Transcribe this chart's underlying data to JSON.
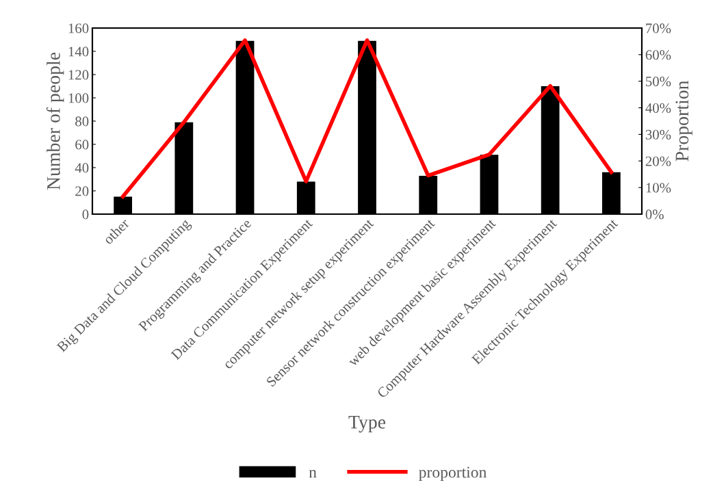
{
  "chart_data": {
    "type": "bar",
    "xlabel": "Type",
    "ylabel": "Number of people",
    "y2label": "Proportion",
    "categories": [
      "other",
      "Big Data and Cloud Computing",
      "Programming and Practice",
      "Data Communication Experiment",
      "computer network setup experiment",
      "Sensor network construction experiment",
      "web development basic experiment",
      "Computer Hardware Assembly Experiment",
      "Electronic Technology Experiment"
    ],
    "series": [
      {
        "name": "n",
        "color": "#000000",
        "values": [
          15,
          79,
          149,
          28,
          149,
          33,
          51,
          110,
          36
        ]
      },
      {
        "name": "proportion",
        "type": "line",
        "axis": "y2",
        "color": "#ff0000",
        "values": [
          6.6,
          34.6,
          65.4,
          12.3,
          65.4,
          14.5,
          22.4,
          48.2,
          15.8
        ]
      }
    ],
    "ylim": [
      0,
      160
    ],
    "yticks": [
      0,
      20,
      40,
      60,
      80,
      100,
      120,
      140,
      160
    ],
    "y2lim": [
      0,
      70
    ],
    "y2ticks": [
      {
        "value": 0,
        "label": "0%"
      },
      {
        "value": 10,
        "label": "10%"
      },
      {
        "value": 20,
        "label": "20%"
      },
      {
        "value": 30,
        "label": "30%"
      },
      {
        "value": 40,
        "label": "40%"
      },
      {
        "value": 50,
        "label": "50%"
      },
      {
        "value": 60,
        "label": "60%"
      },
      {
        "value": 70,
        "label": "70%"
      }
    ],
    "legend": "bottom",
    "grid": false,
    "marker": "none",
    "line_style": "solid"
  }
}
